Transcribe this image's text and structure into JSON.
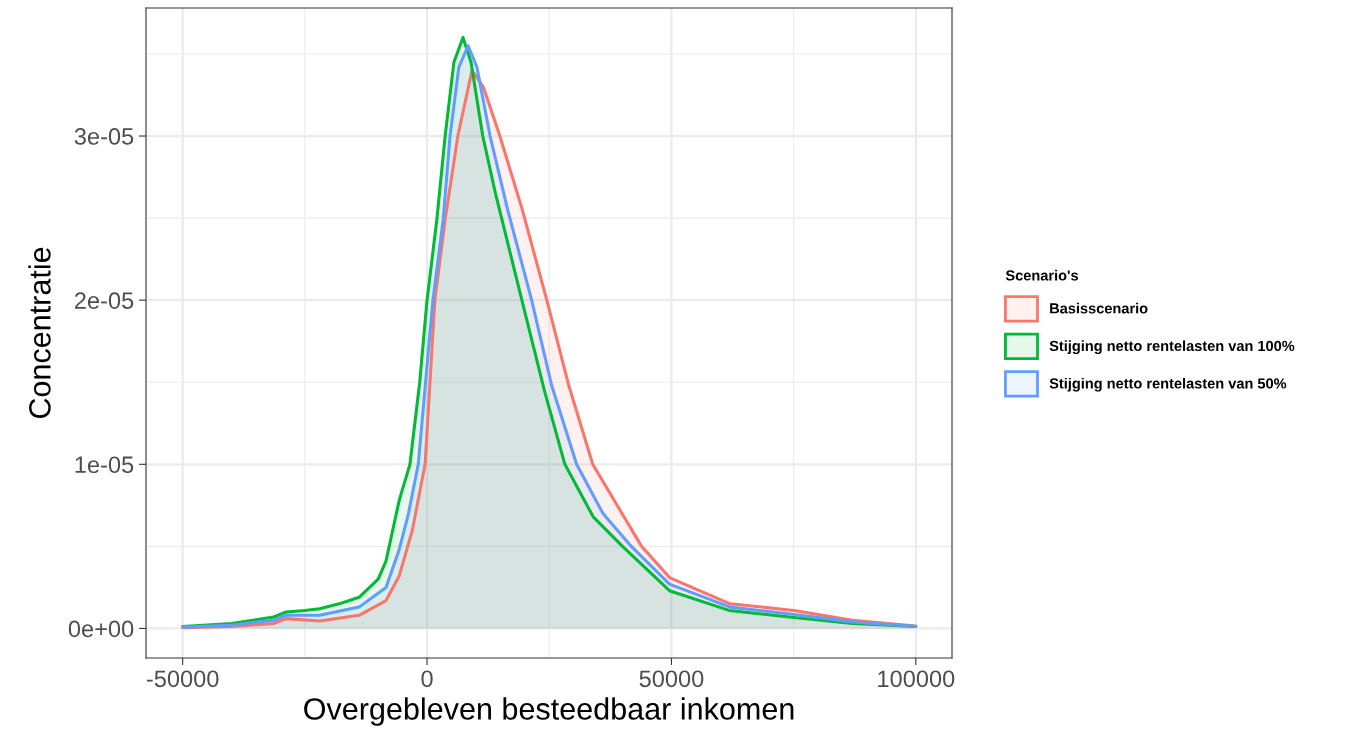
{
  "chart_data": {
    "type": "area",
    "xlabel": "Overgebleven besteedbaar inkomen",
    "ylabel": "Concentratie",
    "legend_title": "Scenario's",
    "legend": "right",
    "grid": true,
    "xlim": [
      -57500,
      107400
    ],
    "ylim": [
      -1.8e-06,
      3.78e-05
    ],
    "xticks": [
      -50000,
      0,
      50000,
      100000
    ],
    "yticks": [
      {
        "value": 0,
        "label": "0e+00"
      },
      {
        "value": 1e-05,
        "label": "1e-05"
      },
      {
        "value": 2e-05,
        "label": "2e-05"
      },
      {
        "value": 3e-05,
        "label": "3e-05"
      }
    ],
    "series": [
      {
        "name": "Basisscenario",
        "color": "#f8766d",
        "x": [
          -50000,
          -40000,
          -31400,
          -28800,
          -22000,
          -13900,
          -8400,
          -5700,
          -3000,
          -400,
          1600,
          3700,
          6300,
          9200,
          11500,
          14900,
          19500,
          24500,
          29000,
          33900,
          43900,
          49600,
          62000,
          75100,
          87000,
          100000
        ],
        "values": [
          4e-08,
          1.2e-07,
          3e-07,
          6e-07,
          4.5e-07,
          8e-07,
          1.7e-06,
          3.2e-06,
          6e-06,
          1e-05,
          2e-05,
          2.49e-05,
          3e-05,
          3.4e-05,
          3.3e-05,
          3e-05,
          2.55e-05,
          2e-05,
          1.48e-05,
          1e-05,
          5e-06,
          3.1e-06,
          1.5e-06,
          1.1e-06,
          5e-07,
          1.5e-07
        ]
      },
      {
        "name": "Stijging netto rentelasten van 100%",
        "color": "#00ba38",
        "x": [
          -50000,
          -40000,
          -31400,
          -28800,
          -25000,
          -22000,
          -18000,
          -13900,
          -10000,
          -8400,
          -5700,
          -3500,
          -1500,
          0,
          2000,
          3700,
          5500,
          7350,
          9000,
          11400,
          14000,
          19400,
          24000,
          28200,
          34000,
          40000,
          49600,
          61800,
          75100,
          87000,
          100000
        ],
        "values": [
          1.2e-07,
          3e-07,
          7e-07,
          1e-06,
          1.1e-06,
          1.2e-06,
          1.5e-06,
          1.9e-06,
          3e-06,
          4.1e-06,
          7.8e-06,
          1e-05,
          1.5e-05,
          2e-05,
          2.49e-05,
          3e-05,
          3.45e-05,
          3.6e-05,
          3.45e-05,
          3e-05,
          2.65e-05,
          2e-05,
          1.45e-05,
          1e-05,
          6.8e-06,
          5e-06,
          2.3e-06,
          1.1e-06,
          6.7e-07,
          3e-07,
          1.2e-07
        ]
      },
      {
        "name": "Stijging netto rentelasten van 50%",
        "color": "#619cff",
        "x": [
          -50000,
          -40000,
          -31400,
          -28800,
          -22000,
          -13900,
          -8400,
          -5700,
          -3800,
          -1800,
          1200,
          3300,
          4700,
          6500,
          8400,
          10200,
          12900,
          16500,
          21400,
          25500,
          30600,
          36000,
          41800,
          49600,
          62000,
          75100,
          87000,
          100000
        ],
        "values": [
          8e-08,
          2e-07,
          5e-07,
          8e-07,
          8e-07,
          1.3e-06,
          2.5e-06,
          4.8e-06,
          7e-06,
          1e-05,
          2e-05,
          2.49e-05,
          3e-05,
          3.42e-05,
          3.55e-05,
          3.42e-05,
          3e-05,
          2.55e-05,
          2e-05,
          1.48e-05,
          1e-05,
          7e-06,
          5e-06,
          2.7e-06,
          1.3e-06,
          8.5e-07,
          4e-07,
          1.2e-07
        ]
      }
    ]
  }
}
